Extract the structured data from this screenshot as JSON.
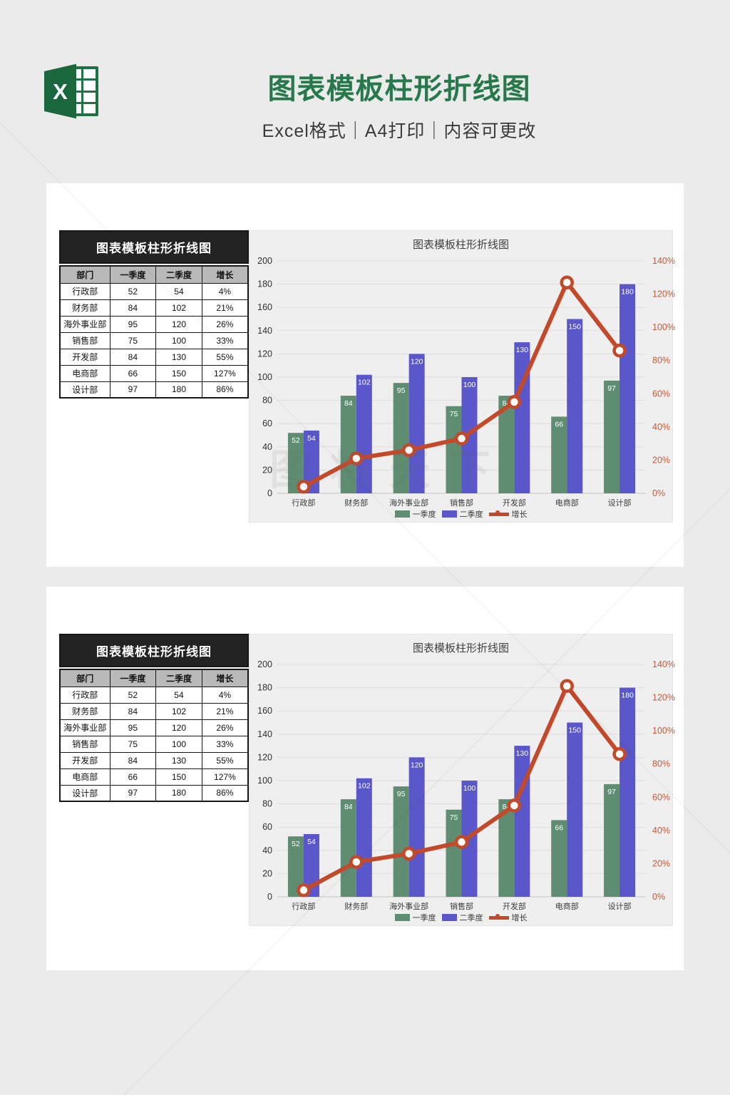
{
  "header": {
    "title": "图表模板柱形折线图",
    "subtitle": "Excel格式｜A4打印｜内容可更改",
    "logo_letter": "X",
    "title_color": "#27794C"
  },
  "panel": {
    "table": {
      "title": "图表模板柱形折线图",
      "columns": [
        "部门",
        "一季度",
        "二季度",
        "增长"
      ],
      "rows": [
        [
          "行政部",
          "52",
          "54",
          "4%"
        ],
        [
          "财务部",
          "84",
          "102",
          "21%"
        ],
        [
          "海外事业部",
          "95",
          "120",
          "26%"
        ],
        [
          "销售部",
          "75",
          "100",
          "33%"
        ],
        [
          "开发部",
          "84",
          "130",
          "55%"
        ],
        [
          "电商部",
          "66",
          "150",
          "127%"
        ],
        [
          "设计部",
          "97",
          "180",
          "86%"
        ]
      ]
    }
  },
  "chart_data": {
    "type": "bar",
    "title": "图表模板柱形折线图",
    "categories": [
      "行政部",
      "财务部",
      "海外事业部",
      "销售部",
      "开发部",
      "电商部",
      "设计部"
    ],
    "series": [
      {
        "name": "一季度",
        "type": "bar",
        "axis": "left",
        "color": "#5E8D72",
        "values": [
          52,
          84,
          95,
          75,
          84,
          66,
          97
        ]
      },
      {
        "name": "二季度",
        "type": "bar",
        "axis": "left",
        "color": "#5957C9",
        "values": [
          54,
          102,
          120,
          100,
          130,
          150,
          180
        ]
      },
      {
        "name": "增长",
        "type": "line",
        "axis": "right",
        "color": "#C3492B",
        "values": [
          4,
          21,
          26,
          33,
          55,
          127,
          86
        ],
        "unit": "%"
      }
    ],
    "left_axis": {
      "min": 0,
      "max": 200,
      "step": 20,
      "label_color": "#303030"
    },
    "right_axis": {
      "min": 0,
      "max": 140,
      "step": 20,
      "suffix": "%",
      "label_color": "#C05A3C"
    },
    "grid": true,
    "legend_position": "bottom",
    "bar_label_color": "#ffffff",
    "grid_color": "#dedcdc",
    "baseline_color": "#c4c4c4",
    "x_label_color": "#3b3b3b"
  },
  "watermark": {
    "text": "图将天下"
  }
}
